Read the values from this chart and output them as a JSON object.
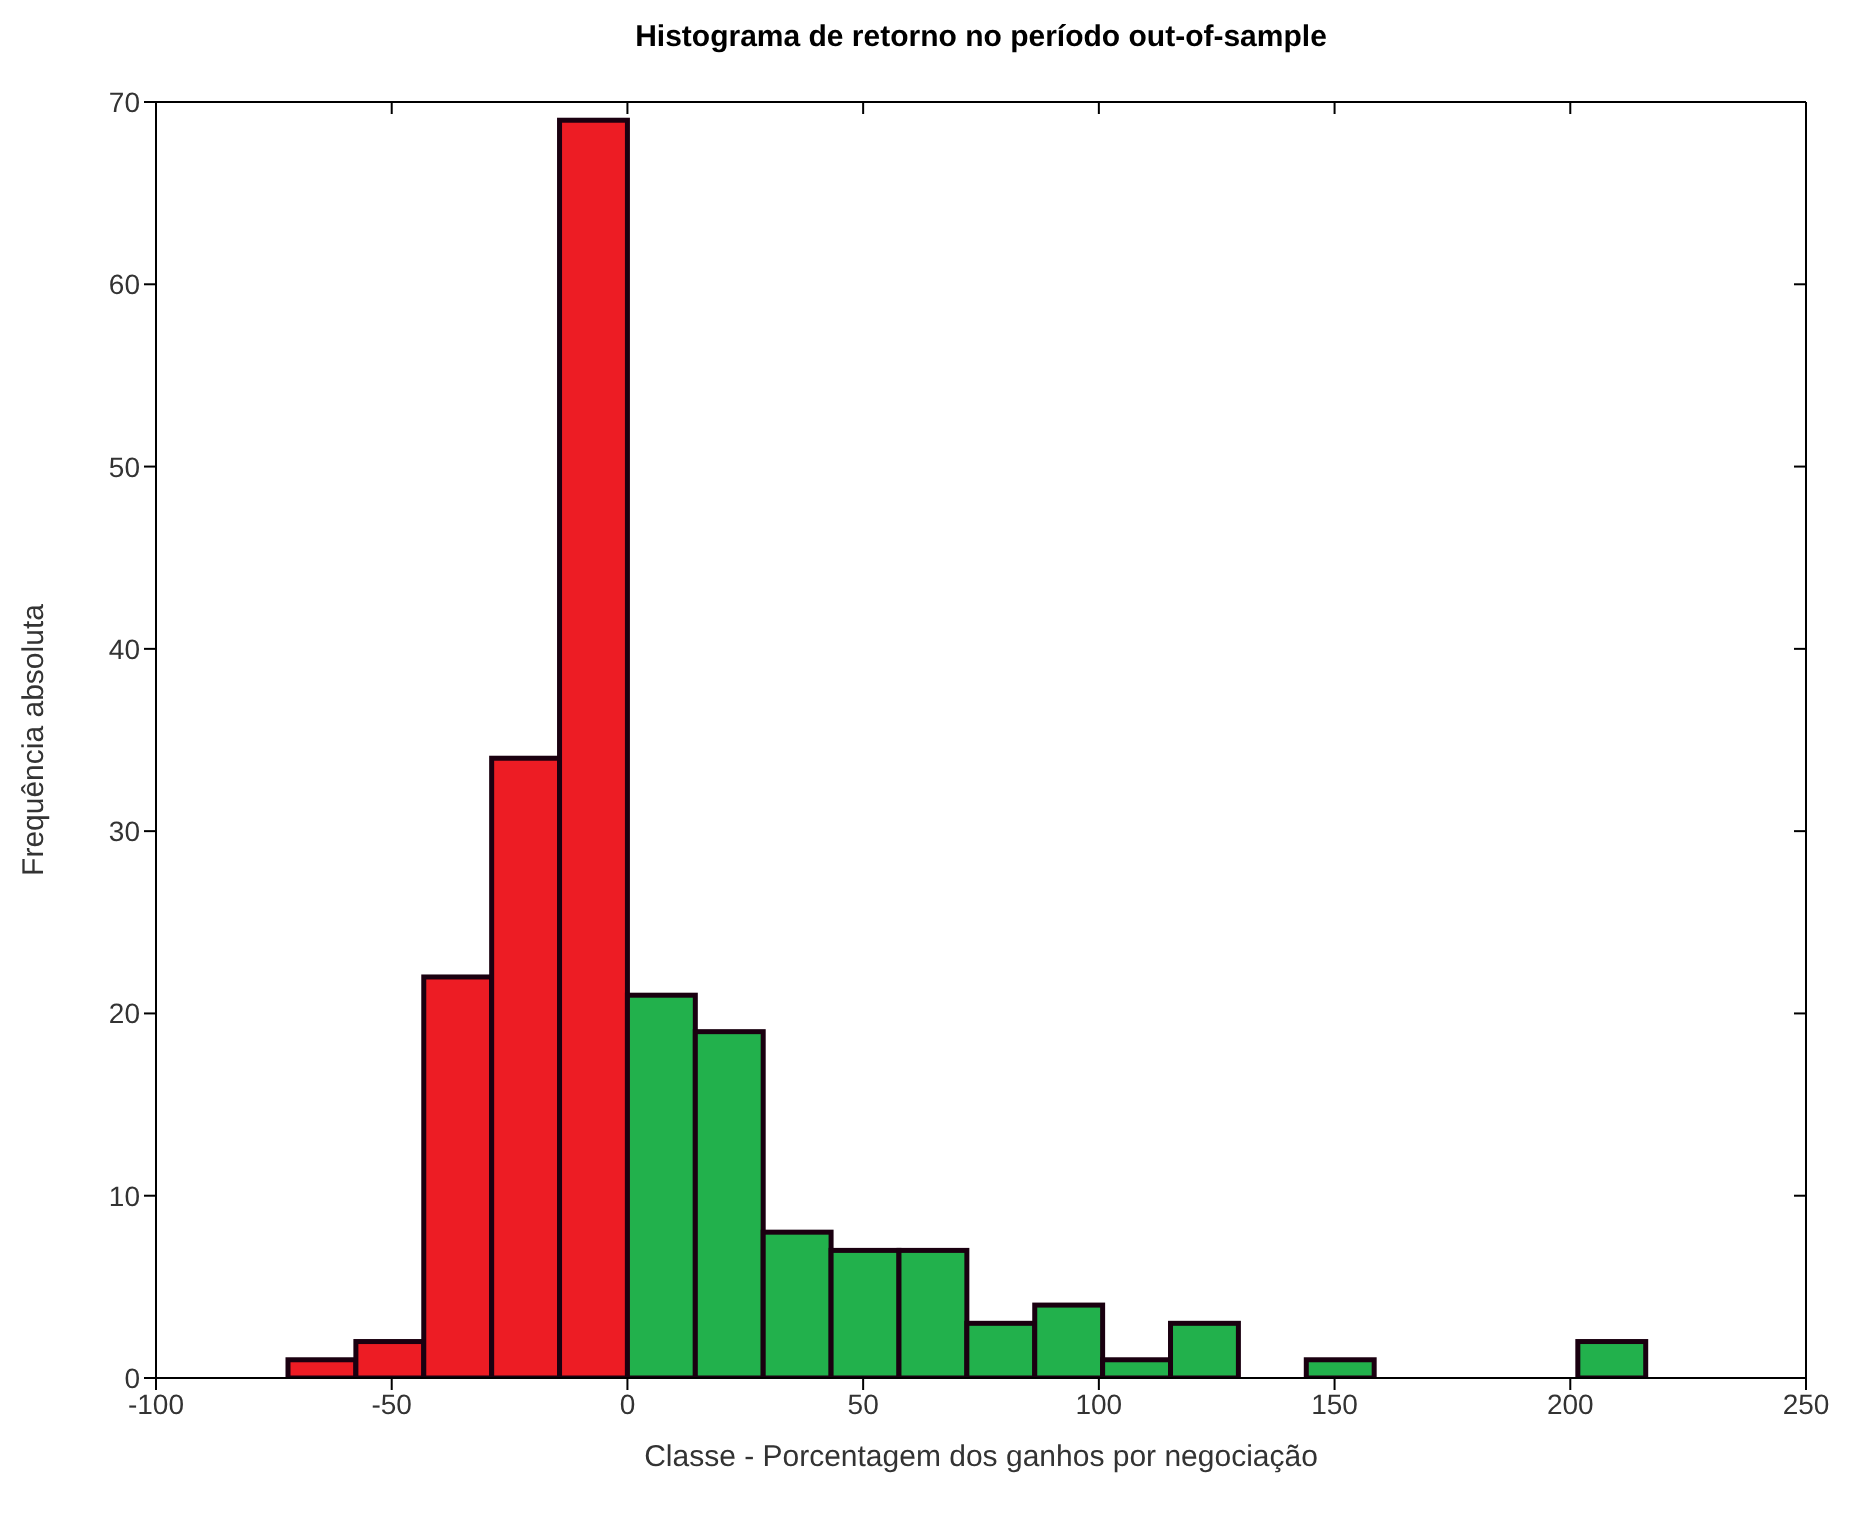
{
  "chart_data": {
    "type": "histogram",
    "title": "Histograma de retorno no período out-of-sample",
    "xlabel": "Classe - Porcentagem dos ganhos por negociação",
    "ylabel": "Frequência absoluta",
    "bins": [
      -72,
      -57.6,
      -43.2,
      -28.8,
      -14.4,
      0,
      14.4,
      28.8,
      43.2,
      57.6,
      72,
      86.4,
      100.8,
      115.2,
      129.6,
      144,
      158.4,
      172.8,
      187.2,
      201.6,
      216
    ],
    "values": [
      1,
      2,
      22,
      34,
      69,
      21,
      19,
      8,
      7,
      7,
      3,
      4,
      1,
      3,
      0,
      1,
      0,
      0,
      0,
      2
    ],
    "colors": [
      "#ed1c24",
      "#ed1c24",
      "#ed1c24",
      "#ed1c24",
      "#ed1c24",
      "#22b14c",
      "#22b14c",
      "#22b14c",
      "#22b14c",
      "#22b14c",
      "#22b14c",
      "#22b14c",
      "#22b14c",
      "#22b14c",
      "#22b14c",
      "#22b14c",
      "#22b14c",
      "#22b14c",
      "#22b14c",
      "#22b14c"
    ],
    "xlim": [
      -100,
      250
    ],
    "xticks": [
      -100,
      -50,
      0,
      50,
      100,
      150,
      200,
      250
    ],
    "ylim": [
      0,
      70
    ],
    "yticks": [
      0,
      10,
      20,
      30,
      40,
      50,
      60,
      70
    ]
  }
}
